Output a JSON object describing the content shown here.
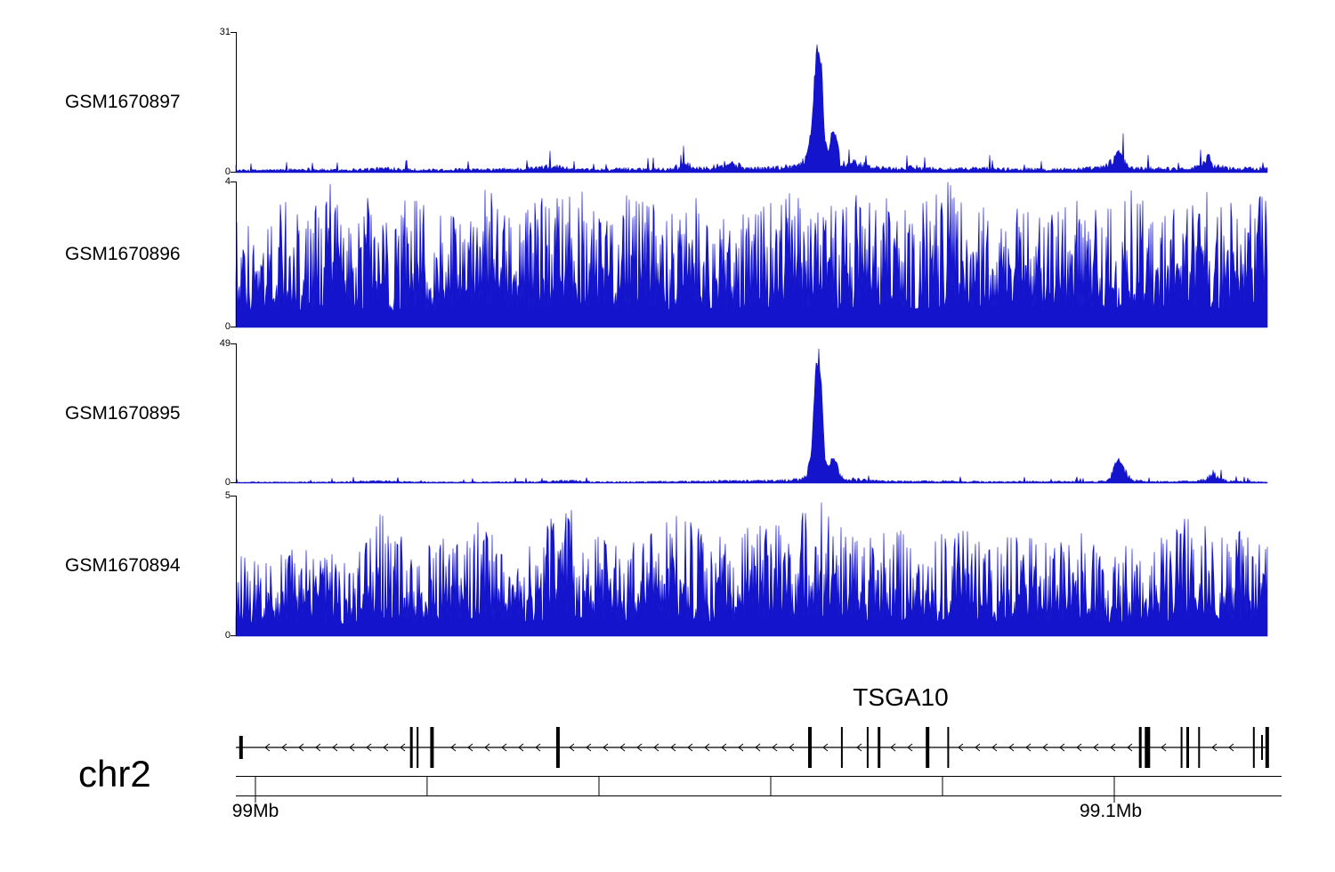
{
  "chart_data": {
    "type": "area",
    "signal_color": "#1414CC",
    "axis_color": "#000000",
    "background_color": "#ffffff",
    "grid": false,
    "legend": false,
    "tracks": [
      {
        "name": "GSM1670897",
        "ymax": 31,
        "ylim": [
          0,
          31
        ],
        "ymax_label": "31",
        "ymin_label": "0",
        "texture": "low",
        "profile": [
          [
            0,
            0.7
          ],
          [
            0.04,
            0.8
          ],
          [
            0.07,
            1.1
          ],
          [
            0.09,
            0.8
          ],
          [
            0.12,
            1.0
          ],
          [
            0.15,
            1.4
          ],
          [
            0.18,
            0.8
          ],
          [
            0.21,
            1.0
          ],
          [
            0.24,
            0.9
          ],
          [
            0.28,
            1.2
          ],
          [
            0.31,
            2.0
          ],
          [
            0.33,
            0.9
          ],
          [
            0.36,
            1.0
          ],
          [
            0.39,
            1.2
          ],
          [
            0.42,
            1.1
          ],
          [
            0.435,
            2.6
          ],
          [
            0.45,
            1.3
          ],
          [
            0.465,
            2.2
          ],
          [
            0.48,
            3.1
          ],
          [
            0.495,
            1.4
          ],
          [
            0.51,
            1.3
          ],
          [
            0.53,
            1.8
          ],
          [
            0.545,
            2.4
          ],
          [
            0.553,
            4
          ],
          [
            0.558,
            10
          ],
          [
            0.562,
            26
          ],
          [
            0.565,
            31
          ],
          [
            0.568,
            24
          ],
          [
            0.571,
            8
          ],
          [
            0.5745,
            5
          ],
          [
            0.578,
            10
          ],
          [
            0.582,
            9
          ],
          [
            0.586,
            3.2
          ],
          [
            0.592,
            2.4
          ],
          [
            0.6,
            3.0
          ],
          [
            0.61,
            2.2
          ],
          [
            0.62,
            1.6
          ],
          [
            0.64,
            1.2
          ],
          [
            0.66,
            1.7
          ],
          [
            0.68,
            1.2
          ],
          [
            0.7,
            1.1
          ],
          [
            0.72,
            1.4
          ],
          [
            0.75,
            1.1
          ],
          [
            0.78,
            1.0
          ],
          [
            0.8,
            1.1
          ],
          [
            0.82,
            1.2
          ],
          [
            0.84,
            1.6
          ],
          [
            0.851,
            3.6
          ],
          [
            0.856,
            5.2
          ],
          [
            0.862,
            3.0
          ],
          [
            0.87,
            1.3
          ],
          [
            0.89,
            1.5
          ],
          [
            0.91,
            1.2
          ],
          [
            0.93,
            1.6
          ],
          [
            0.943,
            4.2
          ],
          [
            0.95,
            2.0
          ],
          [
            0.97,
            1.2
          ],
          [
            0.99,
            1.4
          ],
          [
            1,
            1.2
          ]
        ]
      },
      {
        "name": "GSM1670896",
        "ymax": 4,
        "ylim": [
          0,
          4
        ],
        "ymax_label": "4",
        "ymin_label": "0",
        "texture": "dense",
        "profile": [
          [
            0,
            3.3
          ],
          [
            0.02,
            2.6
          ],
          [
            0.045,
            3.8
          ],
          [
            0.07,
            3.0
          ],
          [
            0.09,
            4.0
          ],
          [
            0.11,
            3.2
          ],
          [
            0.13,
            3.6
          ],
          [
            0.15,
            2.9
          ],
          [
            0.17,
            3.8
          ],
          [
            0.19,
            3.1
          ],
          [
            0.21,
            3.5
          ],
          [
            0.24,
            3.9
          ],
          [
            0.27,
            3.1
          ],
          [
            0.3,
            3.6
          ],
          [
            0.33,
            3.9
          ],
          [
            0.36,
            3.1
          ],
          [
            0.39,
            4.0
          ],
          [
            0.42,
            3.3
          ],
          [
            0.45,
            3.7
          ],
          [
            0.48,
            3.1
          ],
          [
            0.51,
            3.5
          ],
          [
            0.54,
            3.9
          ],
          [
            0.57,
            3.3
          ],
          [
            0.6,
            3.7
          ],
          [
            0.63,
            3.9
          ],
          [
            0.66,
            3.3
          ],
          [
            0.69,
            4.0
          ],
          [
            0.72,
            3.5
          ],
          [
            0.75,
            3.9
          ],
          [
            0.78,
            3.1
          ],
          [
            0.81,
            3.7
          ],
          [
            0.84,
            3.3
          ],
          [
            0.87,
            3.9
          ],
          [
            0.89,
            3.1
          ],
          [
            0.91,
            3.5
          ],
          [
            0.94,
            3.9
          ],
          [
            0.96,
            3.3
          ],
          [
            0.98,
            4.0
          ],
          [
            1,
            3.6
          ]
        ]
      },
      {
        "name": "GSM1670895",
        "ymax": 49,
        "ylim": [
          0,
          49
        ],
        "ymax_label": "49",
        "ymin_label": "0",
        "texture": "low",
        "profile": [
          [
            0,
            0.5
          ],
          [
            0.05,
            0.5
          ],
          [
            0.1,
            0.6
          ],
          [
            0.14,
            1.1
          ],
          [
            0.17,
            0.6
          ],
          [
            0.21,
            0.5
          ],
          [
            0.25,
            0.6
          ],
          [
            0.29,
            0.7
          ],
          [
            0.32,
            1.4
          ],
          [
            0.35,
            0.6
          ],
          [
            0.39,
            0.7
          ],
          [
            0.43,
            0.8
          ],
          [
            0.46,
            1.0
          ],
          [
            0.49,
            1.3
          ],
          [
            0.52,
            1.2
          ],
          [
            0.545,
            1.8
          ],
          [
            0.553,
            3
          ],
          [
            0.558,
            12
          ],
          [
            0.562,
            41
          ],
          [
            0.565,
            49
          ],
          [
            0.568,
            37
          ],
          [
            0.571,
            9
          ],
          [
            0.575,
            6
          ],
          [
            0.578,
            9.5
          ],
          [
            0.582,
            8
          ],
          [
            0.587,
            3
          ],
          [
            0.593,
            1.6
          ],
          [
            0.6,
            2.2
          ],
          [
            0.62,
            1.1
          ],
          [
            0.65,
            0.8
          ],
          [
            0.68,
            1.0
          ],
          [
            0.71,
            0.8
          ],
          [
            0.74,
            0.7
          ],
          [
            0.77,
            0.8
          ],
          [
            0.8,
            0.8
          ],
          [
            0.83,
            0.7
          ],
          [
            0.845,
            1.2
          ],
          [
            0.851,
            6.5
          ],
          [
            0.856,
            9
          ],
          [
            0.861,
            6
          ],
          [
            0.868,
            1.8
          ],
          [
            0.885,
            0.8
          ],
          [
            0.905,
            0.7
          ],
          [
            0.925,
            0.9
          ],
          [
            0.94,
            1.6
          ],
          [
            0.948,
            5
          ],
          [
            0.955,
            1.8
          ],
          [
            0.97,
            0.8
          ],
          [
            0.99,
            0.7
          ],
          [
            1,
            0.6
          ]
        ]
      },
      {
        "name": "GSM1670894",
        "ymax": 5,
        "ylim": [
          0,
          5
        ],
        "ymax_label": "5",
        "ymin_label": "0",
        "texture": "dense",
        "profile": [
          [
            0,
            3.0
          ],
          [
            0.03,
            2.7
          ],
          [
            0.06,
            3.3
          ],
          [
            0.09,
            2.9
          ],
          [
            0.12,
            3.1
          ],
          [
            0.14,
            4.6
          ],
          [
            0.17,
            3.1
          ],
          [
            0.2,
            3.5
          ],
          [
            0.235,
            4.4
          ],
          [
            0.26,
            3.3
          ],
          [
            0.295,
            3.7
          ],
          [
            0.318,
            4.8
          ],
          [
            0.34,
            3.9
          ],
          [
            0.37,
            3.3
          ],
          [
            0.4,
            3.7
          ],
          [
            0.43,
            4.4
          ],
          [
            0.46,
            3.5
          ],
          [
            0.49,
            3.9
          ],
          [
            0.52,
            4.2
          ],
          [
            0.545,
            4.4
          ],
          [
            0.565,
            5.0
          ],
          [
            0.585,
            4.1
          ],
          [
            0.61,
            3.7
          ],
          [
            0.64,
            3.9
          ],
          [
            0.67,
            3.5
          ],
          [
            0.7,
            3.9
          ],
          [
            0.73,
            3.5
          ],
          [
            0.76,
            3.7
          ],
          [
            0.79,
            3.3
          ],
          [
            0.82,
            3.7
          ],
          [
            0.85,
            3.3
          ],
          [
            0.88,
            3.5
          ],
          [
            0.91,
            3.7
          ],
          [
            0.927,
            4.7
          ],
          [
            0.95,
            3.5
          ],
          [
            0.98,
            3.9
          ],
          [
            1,
            3.5
          ]
        ]
      }
    ],
    "gene_track": {
      "gene": "TSGA10",
      "strand": "-",
      "exons": [
        {
          "x": 0.005,
          "w": 4,
          "h": 26
        },
        {
          "x": 0.17,
          "w": 3,
          "h": 46
        },
        {
          "x": 0.176,
          "w": 2,
          "h": 46
        },
        {
          "x": 0.19,
          "w": 4,
          "h": 46
        },
        {
          "x": 0.312,
          "w": 4,
          "h": 46
        },
        {
          "x": 0.556,
          "w": 4,
          "h": 46
        },
        {
          "x": 0.587,
          "w": 2,
          "h": 46
        },
        {
          "x": 0.612,
          "w": 2,
          "h": 46
        },
        {
          "x": 0.623,
          "w": 3,
          "h": 46
        },
        {
          "x": 0.67,
          "w": 4,
          "h": 46
        },
        {
          "x": 0.69,
          "w": 2,
          "h": 46
        },
        {
          "x": 0.876,
          "w": 3,
          "h": 46
        },
        {
          "x": 0.883,
          "w": 6,
          "h": 46
        },
        {
          "x": 0.916,
          "w": 2,
          "h": 46
        },
        {
          "x": 0.922,
          "w": 3,
          "h": 46
        },
        {
          "x": 0.933,
          "w": 2,
          "h": 46
        },
        {
          "x": 0.986,
          "w": 2,
          "h": 46
        },
        {
          "x": 0.994,
          "w": 2,
          "h": 28
        },
        {
          "x": 0.999,
          "w": 4,
          "h": 46
        }
      ]
    },
    "x_axis": {
      "chromosome": "chr2",
      "start_label": "99Mb",
      "end_label": "99.1Mb",
      "ticks": [
        {
          "f": 0.019,
          "label": "99Mb",
          "major": true
        },
        {
          "f": 0.1853,
          "major": false
        },
        {
          "f": 0.3517,
          "major": false
        },
        {
          "f": 0.5181,
          "major": false
        },
        {
          "f": 0.6845,
          "major": false
        },
        {
          "f": 0.8509,
          "label": "99.1Mb",
          "major": true
        }
      ]
    }
  }
}
